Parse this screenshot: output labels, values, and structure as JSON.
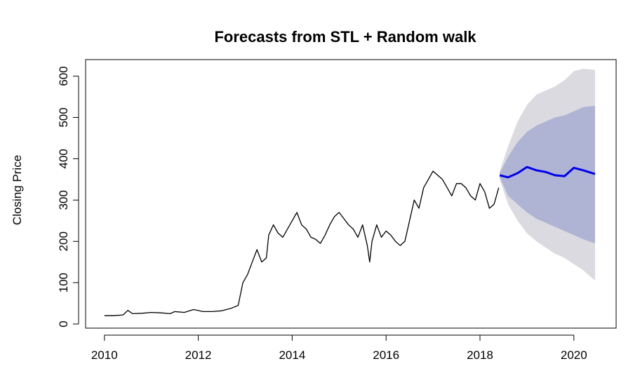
{
  "chart_data": {
    "type": "line",
    "title": "Forecasts from STL +  Random walk",
    "xlabel": "",
    "ylabel": "Closing Price",
    "xlim": [
      2009.6,
      2020.9
    ],
    "ylim": [
      -10,
      640
    ],
    "x_ticks": [
      2010,
      2012,
      2014,
      2016,
      2018,
      2020
    ],
    "x_tick_labels": [
      "2010",
      "2012",
      "2014",
      "2016",
      "2018",
      "2020"
    ],
    "y_ticks": [
      0,
      100,
      200,
      300,
      400,
      500,
      600
    ],
    "y_tick_labels": [
      "0",
      "100",
      "200",
      "300",
      "400",
      "500",
      "600"
    ],
    "grid": false,
    "colors": {
      "history": "#000000",
      "forecast": "#0000ee",
      "band80": "#b0b4d4",
      "band95": "#dadae0"
    },
    "series": [
      {
        "role": "history",
        "x": [
          2010.0,
          2010.2,
          2010.4,
          2010.5,
          2010.6,
          2010.8,
          2011.0,
          2011.2,
          2011.4,
          2011.5,
          2011.7,
          2011.9,
          2012.1,
          2012.3,
          2012.5,
          2012.7,
          2012.85,
          2012.95,
          2013.05,
          2013.15,
          2013.25,
          2013.35,
          2013.45,
          2013.5,
          2013.6,
          2013.7,
          2013.8,
          2013.9,
          2014.0,
          2014.1,
          2014.2,
          2014.3,
          2014.4,
          2014.5,
          2014.6,
          2014.7,
          2014.8,
          2014.9,
          2015.0,
          2015.1,
          2015.2,
          2015.3,
          2015.4,
          2015.5,
          2015.6,
          2015.65,
          2015.7,
          2015.8,
          2015.9,
          2016.0,
          2016.1,
          2016.2,
          2016.3,
          2016.4,
          2016.5,
          2016.6,
          2016.7,
          2016.8,
          2016.9,
          2017.0,
          2017.1,
          2017.2,
          2017.3,
          2017.4,
          2017.5,
          2017.6,
          2017.7,
          2017.8,
          2017.9,
          2018.0,
          2018.1,
          2018.2,
          2018.3,
          2018.4
        ],
        "y": [
          20,
          20,
          22,
          33,
          25,
          26,
          28,
          27,
          25,
          30,
          28,
          35,
          30,
          30,
          32,
          38,
          45,
          100,
          120,
          150,
          180,
          150,
          160,
          215,
          240,
          220,
          210,
          230,
          250,
          270,
          240,
          230,
          210,
          205,
          195,
          215,
          240,
          260,
          270,
          255,
          240,
          230,
          210,
          240,
          190,
          150,
          200,
          240,
          210,
          225,
          215,
          200,
          190,
          200,
          250,
          300,
          280,
          330,
          350,
          370,
          360,
          350,
          330,
          310,
          340,
          340,
          330,
          310,
          300,
          340,
          320,
          280,
          290,
          330
        ]
      },
      {
        "role": "forecast",
        "x": [
          2018.42,
          2018.6,
          2018.8,
          2019.0,
          2019.2,
          2019.4,
          2019.6,
          2019.8,
          2020.0,
          2020.2,
          2020.45
        ],
        "y": [
          360,
          355,
          365,
          380,
          372,
          368,
          360,
          358,
          378,
          372,
          363
        ]
      }
    ],
    "bands": [
      {
        "level": 95,
        "x": [
          2018.42,
          2018.6,
          2018.8,
          2019.0,
          2019.2,
          2019.4,
          2019.6,
          2019.8,
          2020.0,
          2020.2,
          2020.45
        ],
        "lower": [
          350,
          290,
          250,
          220,
          200,
          185,
          170,
          160,
          145,
          130,
          105
        ],
        "upper": [
          370,
          430,
          490,
          530,
          555,
          565,
          575,
          590,
          612,
          618,
          615
        ]
      },
      {
        "level": 80,
        "x": [
          2018.42,
          2018.6,
          2018.8,
          2019.0,
          2019.2,
          2019.4,
          2019.6,
          2019.8,
          2020.0,
          2020.2,
          2020.45
        ],
        "lower": [
          355,
          310,
          290,
          270,
          255,
          245,
          235,
          225,
          215,
          205,
          195
        ],
        "upper": [
          365,
          405,
          440,
          465,
          480,
          490,
          500,
          505,
          515,
          525,
          528
        ]
      }
    ]
  }
}
